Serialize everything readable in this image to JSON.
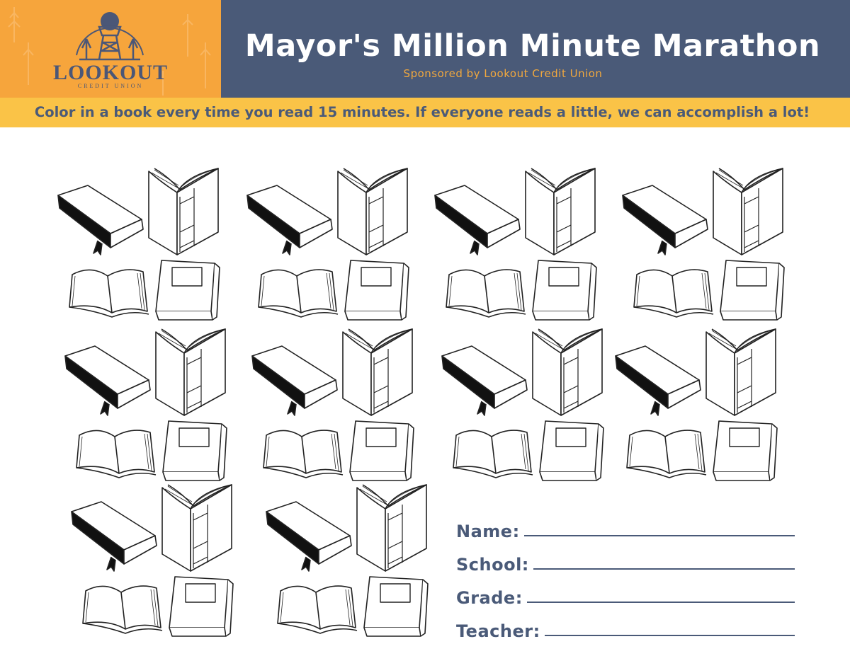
{
  "logo": {
    "name": "LOOKOUT",
    "subtitle": "CREDIT UNION"
  },
  "header": {
    "title": "Mayor's Million Minute Marathon",
    "subtitle": "Sponsored by Lookout Credit Union"
  },
  "instructions": "Color in a book every time you read 15 minutes. If everyone reads a little, we can accomplish a lot!",
  "form": {
    "fields": [
      "Name:",
      "School:",
      "Grade:",
      "Teacher:"
    ]
  }
}
